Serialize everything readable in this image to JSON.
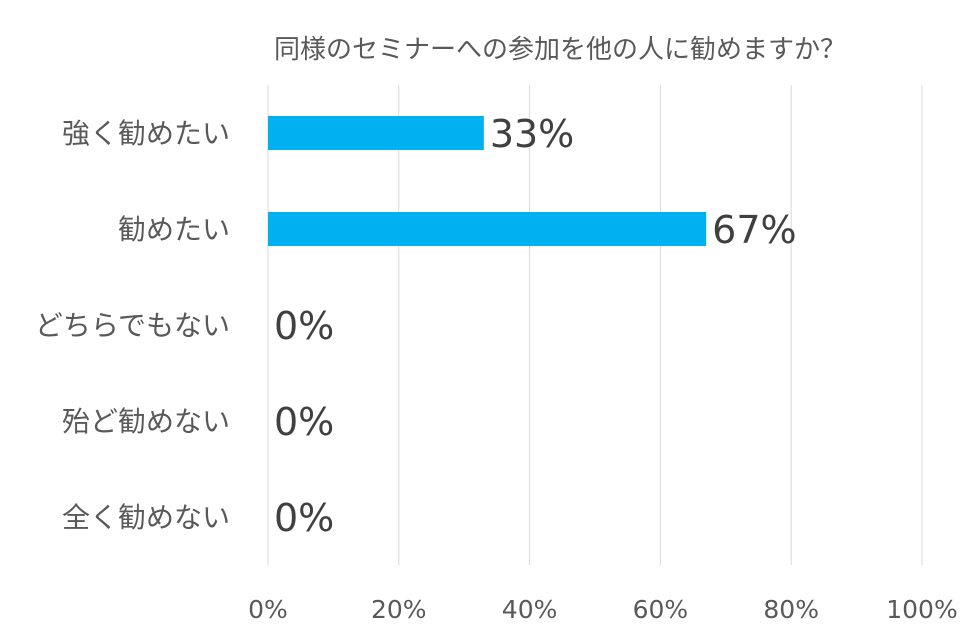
{
  "chart_data": {
    "type": "bar",
    "orientation": "horizontal",
    "title": "同様のセミナーへの参加を他の人に勧めますか？",
    "categories": [
      "強く勧めたい",
      "勧めたい",
      "どちらでもない",
      "殆ど勧めない",
      "全く勧めない"
    ],
    "values": [
      33,
      67,
      0,
      0,
      0
    ],
    "data_labels": [
      "33%",
      "67%",
      "0%",
      "0%",
      "0%"
    ],
    "xlim": [
      0,
      100
    ],
    "x_ticks": [
      "0%",
      "20%",
      "40%",
      "60%",
      "80%",
      "100%"
    ],
    "grid": true,
    "bar_color": "#00b0f0"
  }
}
